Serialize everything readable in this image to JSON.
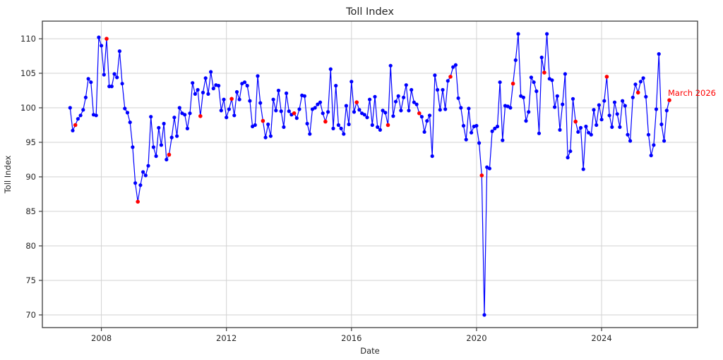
{
  "chart_data": {
    "type": "line",
    "title": "Toll Index",
    "xlabel": "Date",
    "ylabel": "Toll Index",
    "x_start": "2007-01",
    "x_end": "2026-03",
    "frequency": "monthly",
    "ylim": [
      68.2,
      112.6
    ],
    "yticks": [
      70,
      75,
      80,
      85,
      90,
      95,
      100,
      105,
      110
    ],
    "xticks": [
      "2008",
      "2012",
      "2016",
      "2020",
      "2024"
    ],
    "grid": true,
    "line_color": "#0000ff",
    "marker_color": "#0000ff",
    "highlight_color": "#ff0000",
    "annotation": {
      "text": "March 2026",
      "color": "#ff0000",
      "attached_to": "2026-03"
    },
    "highlighted_months": [
      "2007-03",
      "2008-03",
      "2009-03",
      "2010-03",
      "2011-03",
      "2012-03",
      "2013-03",
      "2014-03",
      "2015-03",
      "2016-03",
      "2017-03",
      "2018-03",
      "2019-03",
      "2020-03",
      "2021-03",
      "2022-03",
      "2023-03",
      "2024-03",
      "2025-03",
      "2026-03"
    ],
    "values": [
      100.0,
      96.7,
      97.5,
      98.4,
      98.9,
      99.7,
      101.5,
      104.2,
      103.7,
      99.0,
      98.9,
      110.2,
      109.0,
      104.8,
      110.0,
      103.1,
      103.1,
      104.9,
      104.4,
      108.2,
      103.5,
      99.9,
      99.3,
      97.9,
      94.3,
      89.1,
      86.4,
      88.8,
      90.7,
      90.2,
      91.6,
      98.7,
      94.3,
      93.0,
      97.1,
      94.6,
      97.7,
      92.5,
      93.2,
      95.7,
      98.6,
      95.9,
      100.0,
      99.2,
      99.0,
      97.0,
      99.2,
      103.6,
      102.0,
      102.6,
      98.8,
      102.2,
      104.3,
      102.0,
      105.2,
      102.8,
      103.3,
      103.2,
      99.6,
      101.2,
      98.6,
      99.8,
      101.3,
      98.9,
      102.3,
      101.2,
      103.5,
      103.7,
      103.2,
      101.0,
      97.3,
      97.5,
      104.6,
      100.7,
      98.1,
      95.7,
      97.6,
      95.9,
      101.2,
      99.6,
      102.5,
      99.5,
      97.2,
      102.1,
      99.5,
      99.0,
      99.2,
      98.5,
      99.8,
      101.8,
      101.7,
      97.7,
      96.2,
      99.8,
      100.0,
      100.5,
      100.8,
      99.2,
      98.0,
      99.4,
      105.6,
      97.0,
      103.2,
      97.5,
      97.0,
      96.2,
      100.3,
      97.6,
      103.8,
      99.4,
      100.8,
      99.7,
      99.2,
      99.0,
      98.6,
      101.2,
      97.5,
      101.6,
      97.2,
      96.8,
      99.6,
      99.3,
      97.5,
      106.1,
      98.8,
      100.9,
      101.7,
      99.6,
      101.5,
      103.3,
      99.6,
      102.6,
      100.8,
      100.5,
      99.2,
      98.7,
      96.5,
      98.1,
      98.9,
      93.0,
      104.7,
      102.6,
      99.7,
      102.6,
      99.8,
      103.9,
      104.5,
      105.9,
      106.2,
      101.4,
      100.0,
      97.4,
      95.4,
      99.9,
      96.4,
      97.3,
      97.4,
      94.9,
      90.2,
      70.0,
      91.4,
      91.2,
      96.6,
      97.0,
      97.3,
      103.7,
      95.3,
      100.3,
      100.2,
      100.0,
      103.5,
      106.9,
      110.7,
      101.7,
      101.5,
      98.1,
      99.4,
      104.4,
      103.7,
      102.4,
      96.3,
      107.3,
      105.1,
      110.7,
      104.2,
      104.0,
      100.1,
      101.7,
      96.8,
      100.5,
      104.9,
      92.8,
      93.7,
      101.3,
      98.0,
      96.5,
      97.1,
      91.1,
      97.3,
      96.4,
      96.1,
      99.7,
      97.5,
      100.4,
      98.3,
      101.0,
      104.5,
      98.9,
      97.2,
      100.8,
      99.1,
      97.2,
      101.0,
      100.3,
      96.1,
      95.2,
      101.5,
      103.4,
      102.2,
      103.8,
      104.3,
      101.6,
      96.1,
      93.1,
      94.6,
      99.8,
      107.8,
      97.6,
      95.2,
      99.6,
      101.1
    ]
  }
}
